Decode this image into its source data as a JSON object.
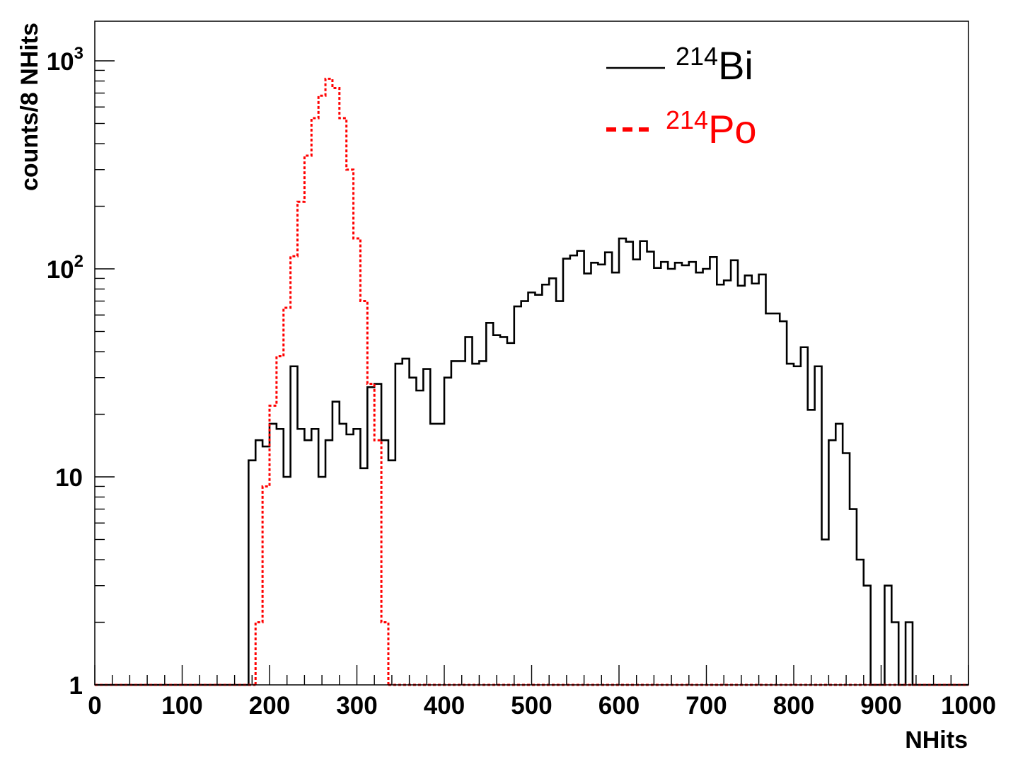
{
  "chart_data": {
    "type": "histogram",
    "title": "",
    "xlabel": "NHits",
    "ylabel": "counts/8 NHits",
    "xlim": [
      0,
      1000
    ],
    "ylim": [
      1,
      1500
    ],
    "y_scale": "log",
    "bin_width": 8,
    "grid": false,
    "legend_position": "top-right",
    "x_ticks": [
      "0",
      "100",
      "200",
      "300",
      "400",
      "500",
      "600",
      "700",
      "800",
      "900",
      "1000"
    ],
    "y_ticks": [
      {
        "value": 1,
        "label": "1",
        "exp": ""
      },
      {
        "value": 10,
        "label": "10",
        "exp": ""
      },
      {
        "value": 100,
        "label": "10",
        "exp": "2"
      },
      {
        "value": 1000,
        "label": "10",
        "exp": "3"
      }
    ],
    "series": [
      {
        "name": "Bi",
        "name_sup": "214",
        "color": "#000000",
        "dash": "solid",
        "bin_start": 176,
        "values": [
          12,
          15,
          14,
          18,
          17,
          10,
          34,
          17,
          15,
          17,
          10,
          15,
          23,
          18,
          16,
          17,
          11,
          27,
          28,
          15,
          12,
          35,
          37,
          30,
          26,
          33,
          18,
          18,
          30,
          36,
          36,
          47,
          35,
          36,
          55,
          48,
          47,
          44,
          66,
          70,
          77,
          75,
          84,
          90,
          70,
          112,
          116,
          122,
          95,
          107,
          105,
          120,
          96,
          140,
          135,
          111,
          136,
          121,
          101,
          108,
          100,
          107,
          104,
          108,
          96,
          100,
          114,
          84,
          88,
          110,
          83,
          93,
          85,
          94,
          61,
          61,
          56,
          35,
          34,
          42,
          21,
          34,
          5,
          15,
          18,
          13,
          7,
          4,
          3,
          1,
          1,
          3,
          2,
          1,
          2,
          1
        ]
      },
      {
        "name": "Po",
        "name_sup": "214",
        "color": "#ff0000",
        "dash": "dotted",
        "bin_start": 184,
        "values": [
          2,
          9,
          22,
          38,
          65,
          115,
          210,
          350,
          530,
          680,
          820,
          740,
          530,
          300,
          140,
          70,
          28,
          15,
          2
        ]
      }
    ]
  }
}
